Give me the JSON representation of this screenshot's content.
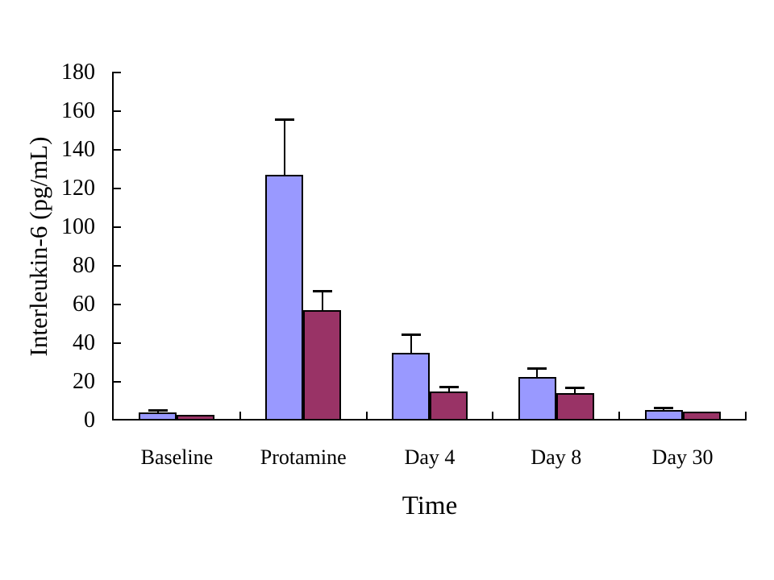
{
  "figure": {
    "background_color": "#ffffff",
    "text_color": "#000000"
  },
  "chart_data": {
    "type": "bar",
    "title": "",
    "xlabel": "Time",
    "ylabel": "Interleukin-6 (pg/mL)",
    "categories": [
      "Baseline",
      "Protamine",
      "Day 4",
      "Day 8",
      "Day 30"
    ],
    "series": [
      {
        "color_name": "lavender",
        "color": "#9999FF",
        "values": [
          4,
          127,
          35,
          22.5,
          5.5
        ],
        "errors_plus": [
          1.5,
          29,
          9.5,
          4.5,
          1
        ]
      },
      {
        "color_name": "plum",
        "color": "#993366",
        "values": [
          3,
          57,
          15,
          14,
          4.5
        ],
        "errors_plus": [
          0,
          10,
          2.5,
          3,
          0
        ]
      }
    ],
    "ylim": [
      0,
      180
    ],
    "yticks": [
      0,
      20,
      40,
      60,
      80,
      100,
      120,
      140,
      160,
      180
    ],
    "grid": false,
    "legend": "none",
    "bar_border_color": "#000000",
    "error_bar_color": "#000000",
    "tick_marks": "inside"
  }
}
